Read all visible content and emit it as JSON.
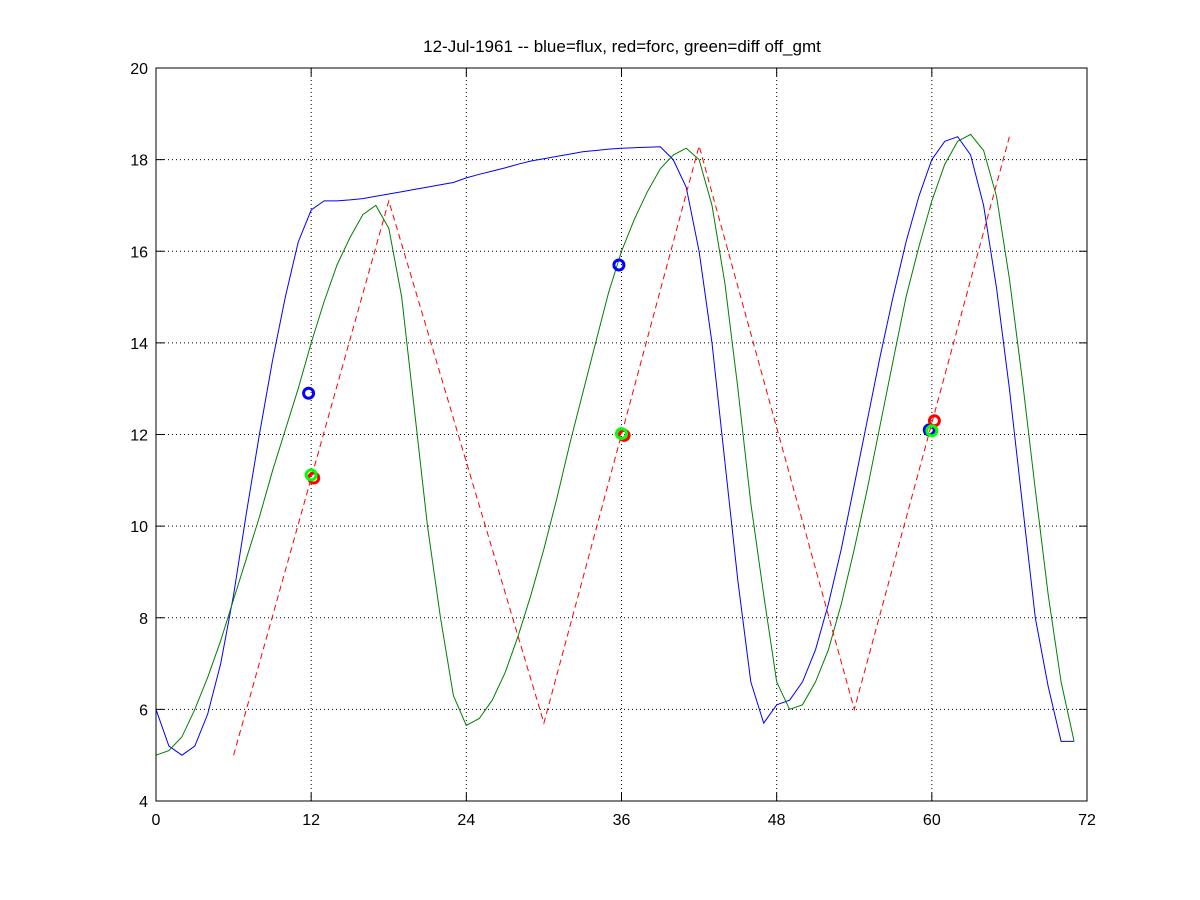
{
  "chart_data": {
    "type": "line",
    "title": "12-Jul-1961 -- blue=flux, red=forc, green=diff off_gmt",
    "xlabel": "",
    "ylabel": "",
    "xlim": [
      0,
      72
    ],
    "ylim": [
      4,
      20
    ],
    "xticks": [
      0,
      12,
      24,
      36,
      48,
      60,
      72
    ],
    "yticks": [
      4,
      6,
      8,
      10,
      12,
      14,
      16,
      18,
      20
    ],
    "grid": true,
    "series": [
      {
        "color": "#0000ff",
        "style": "solid",
        "x": [
          0,
          1,
          2,
          3,
          4,
          5,
          6,
          7,
          8,
          9,
          10,
          11,
          12,
          13,
          14,
          15,
          16,
          17,
          18,
          19,
          20,
          21,
          22,
          23,
          24,
          25,
          26,
          27,
          28,
          29,
          30,
          31,
          32,
          33,
          34,
          35,
          36,
          37,
          38,
          39,
          40,
          41,
          42,
          43,
          44,
          45,
          46,
          47,
          48,
          49,
          50,
          51,
          52,
          53,
          54,
          55,
          56,
          57,
          58,
          59,
          60,
          61,
          62,
          63,
          64,
          65,
          66,
          67,
          68,
          69,
          70,
          71
        ],
        "y": [
          6.0,
          5.2,
          5.0,
          5.2,
          5.9,
          7.0,
          8.5,
          10.3,
          12.0,
          13.6,
          15.0,
          16.2,
          16.9,
          17.1,
          17.1,
          17.12,
          17.15,
          17.2,
          17.25,
          17.3,
          17.35,
          17.4,
          17.45,
          17.5,
          17.6,
          17.68,
          17.75,
          17.82,
          17.9,
          17.97,
          18.02,
          18.07,
          18.12,
          18.17,
          18.2,
          18.23,
          18.25,
          18.26,
          18.27,
          18.28,
          18.0,
          17.4,
          16.0,
          14.0,
          11.4,
          8.8,
          6.6,
          5.7,
          6.1,
          6.2,
          6.6,
          7.3,
          8.3,
          9.5,
          10.9,
          12.3,
          13.7,
          15.0,
          16.2,
          17.2,
          18.0,
          18.4,
          18.5,
          18.1,
          17.0,
          15.2,
          13.0,
          10.5,
          8.0,
          6.5,
          5.3,
          5.3
        ]
      },
      {
        "color": "#007f00",
        "style": "solid",
        "x": [
          0,
          1,
          2,
          3,
          4,
          5,
          6,
          7,
          8,
          9,
          10,
          11,
          12,
          13,
          14,
          15,
          16,
          17,
          18,
          19,
          20,
          21,
          22,
          23,
          24,
          25,
          26,
          27,
          28,
          29,
          30,
          31,
          32,
          33,
          34,
          35,
          36,
          37,
          38,
          39,
          40,
          41,
          42,
          43,
          44,
          45,
          46,
          47,
          48,
          49,
          50,
          51,
          52,
          53,
          54,
          55,
          56,
          57,
          58,
          59,
          60,
          61,
          62,
          63,
          64,
          65,
          66,
          67,
          68,
          69,
          70,
          71
        ],
        "y": [
          5.0,
          5.1,
          5.4,
          6.0,
          6.7,
          7.5,
          8.4,
          9.3,
          10.2,
          11.2,
          12.1,
          13.0,
          14.0,
          14.9,
          15.7,
          16.3,
          16.8,
          17.0,
          16.5,
          15.0,
          12.5,
          10.0,
          8.0,
          6.3,
          5.65,
          5.8,
          6.2,
          6.8,
          7.6,
          8.5,
          9.5,
          10.6,
          11.8,
          12.9,
          14.0,
          15.1,
          16.0,
          16.7,
          17.3,
          17.8,
          18.1,
          18.25,
          18.0,
          17.0,
          15.3,
          13.0,
          10.5,
          8.5,
          6.6,
          6.0,
          6.1,
          6.6,
          7.3,
          8.3,
          9.5,
          10.8,
          12.2,
          13.6,
          15.0,
          16.1,
          17.1,
          17.9,
          18.4,
          18.55,
          18.2,
          17.2,
          15.4,
          13.2,
          10.8,
          8.5,
          6.6,
          5.3
        ]
      },
      {
        "color": "#ff0000",
        "style": "dashed",
        "x": [
          6,
          18,
          30,
          42,
          54,
          66
        ],
        "y": [
          5.0,
          17.1,
          5.7,
          18.3,
          6.0,
          18.5
        ]
      }
    ],
    "markers": [
      {
        "color": "#0000ff",
        "x": 11.8,
        "y": 12.9
      },
      {
        "color": "#0000ff",
        "x": 35.8,
        "y": 15.7
      },
      {
        "color": "#0000ff",
        "x": 59.8,
        "y": 12.1
      },
      {
        "color": "#ff0000",
        "x": 12.2,
        "y": 11.05
      },
      {
        "color": "#ff0000",
        "x": 36.2,
        "y": 11.98
      },
      {
        "color": "#ff0000",
        "x": 60.2,
        "y": 12.3
      },
      {
        "color": "#00ff00",
        "x": 12.0,
        "y": 11.12
      },
      {
        "color": "#00ff00",
        "x": 36.0,
        "y": 12.02
      },
      {
        "color": "#00ff00",
        "x": 60.0,
        "y": 12.08
      }
    ]
  }
}
